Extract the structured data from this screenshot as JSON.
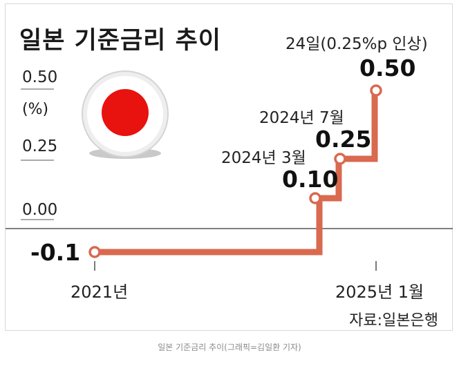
{
  "chart_data": {
    "type": "line",
    "step": true,
    "title": "일본 기준금리 추이",
    "unit": "(%)",
    "ylim": [
      -0.1,
      0.5
    ],
    "yticks": [
      "0.50",
      "0.25",
      "0.00"
    ],
    "xticks": [
      "2021년",
      "2025년 1월"
    ],
    "points": [
      {
        "x": "2021-01",
        "y": -0.1,
        "label": "-0.1",
        "annotation": ""
      },
      {
        "x": "2024-03",
        "y": 0.1,
        "label": "0.10",
        "annotation": "2024년 3월"
      },
      {
        "x": "2024-07",
        "y": 0.25,
        "label": "0.25",
        "annotation": "2024년 7월"
      },
      {
        "x": "2025-01-24",
        "y": 0.5,
        "label": "0.50",
        "annotation": "24일(0.25%p 인상)"
      }
    ],
    "grid": false,
    "legend": "none"
  },
  "colors": {
    "line": "#d9694f",
    "marker_fill": "#ffffff",
    "axis": "#333333",
    "flag_red": "#e8120f"
  },
  "icons": {
    "flag": "japan-flag-icon"
  },
  "source": "자료:일본은행",
  "caption": "일본 기준금리 추이(그래픽=김일환 기자)"
}
